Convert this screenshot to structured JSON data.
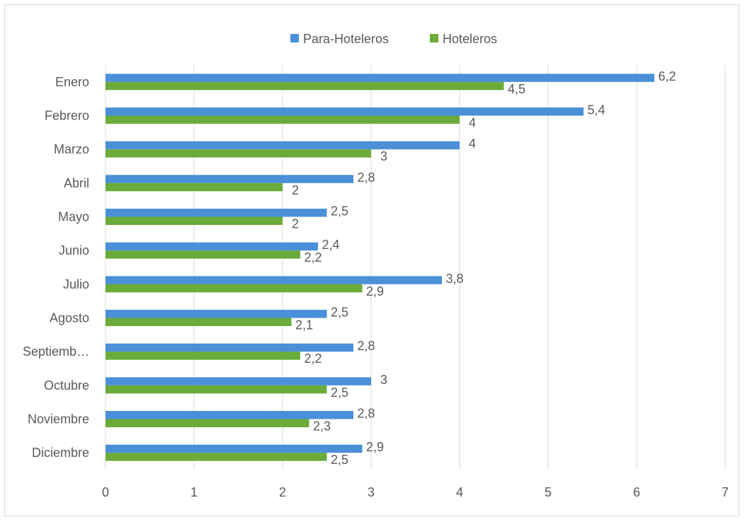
{
  "chart_data": {
    "type": "bar",
    "orientation": "horizontal",
    "categories": [
      "Enero",
      "Febrero",
      "Marzo",
      "Abril",
      "Mayo",
      "Junio",
      "Julio",
      "Agosto",
      "Septiemb…",
      "Octubre",
      "Noviembre",
      "Diciembre"
    ],
    "series": [
      {
        "name": "Para-Hoteleros",
        "color": "#4a90d9",
        "values": [
          6.2,
          5.4,
          4,
          2.8,
          2.5,
          2.4,
          3.8,
          2.5,
          2.8,
          3,
          2.8,
          2.9
        ],
        "labels": [
          "6,2",
          "5,4",
          "4",
          "2,8",
          "2,5",
          "2,4",
          "3,8",
          "2,5",
          "2,8",
          "3",
          "2,8",
          "2,9"
        ]
      },
      {
        "name": "Hoteleros",
        "color": "#6aab3a",
        "values": [
          4.5,
          4,
          3,
          2,
          2,
          2.2,
          2.9,
          2.1,
          2.2,
          2.5,
          2.3,
          2.5
        ],
        "labels": [
          "4,5",
          "4",
          "3",
          "2",
          "2",
          "2,2",
          "2,9",
          "2,1",
          "2,2",
          "2,5",
          "2,3",
          "2,5"
        ]
      }
    ],
    "xlim": [
      0,
      7
    ],
    "xticks": [
      "0",
      "1",
      "2",
      "3",
      "4",
      "5",
      "6",
      "7"
    ],
    "grid": true,
    "legend": "top-center"
  }
}
